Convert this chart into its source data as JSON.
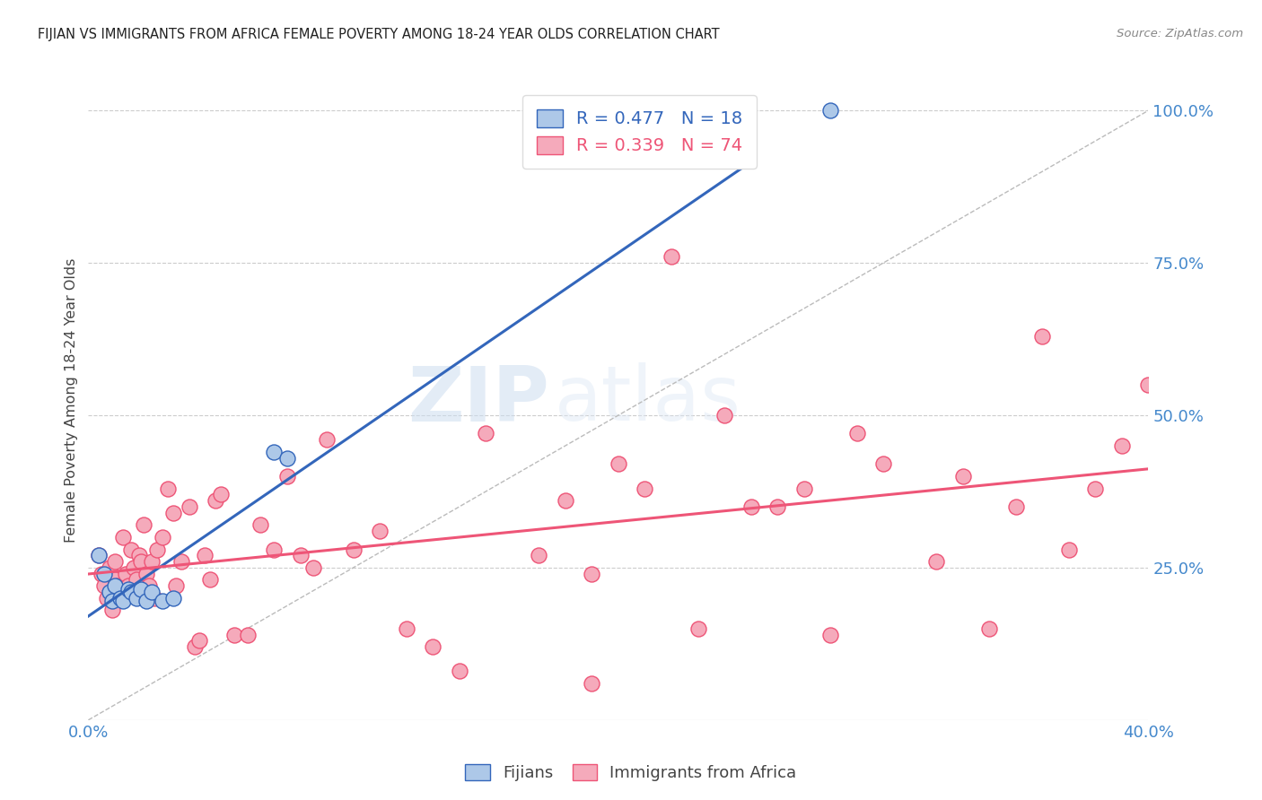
{
  "title": "FIJIAN VS IMMIGRANTS FROM AFRICA FEMALE POVERTY AMONG 18-24 YEAR OLDS CORRELATION CHART",
  "source": "Source: ZipAtlas.com",
  "ylabel": "Female Poverty Among 18-24 Year Olds",
  "xlim": [
    0.0,
    0.4
  ],
  "ylim": [
    0.0,
    1.05
  ],
  "yticks": [
    0.0,
    0.25,
    0.5,
    0.75,
    1.0
  ],
  "ytick_labels": [
    "",
    "25.0%",
    "50.0%",
    "75.0%",
    "100.0%"
  ],
  "xticks": [
    0.0,
    0.08,
    0.16,
    0.24,
    0.32,
    0.4
  ],
  "xtick_labels": [
    "0.0%",
    "",
    "",
    "",
    "",
    "40.0%"
  ],
  "fijian_color": "#adc8e8",
  "africa_color": "#f5aabb",
  "fijian_line_color": "#3366bb",
  "africa_line_color": "#ee5577",
  "diagonal_color": "#bbbbbb",
  "R_fijian": 0.477,
  "N_fijian": 18,
  "R_africa": 0.339,
  "N_africa": 74,
  "legend_label_1": "Fijians",
  "legend_label_2": "Immigrants from Africa",
  "watermark_zip": "ZIP",
  "watermark_atlas": "atlas",
  "fijian_x": [
    0.004,
    0.006,
    0.008,
    0.009,
    0.01,
    0.012,
    0.013,
    0.015,
    0.016,
    0.018,
    0.02,
    0.022,
    0.024,
    0.028,
    0.032,
    0.07,
    0.075,
    0.28
  ],
  "fijian_y": [
    0.27,
    0.24,
    0.21,
    0.195,
    0.22,
    0.2,
    0.195,
    0.215,
    0.21,
    0.2,
    0.215,
    0.195,
    0.21,
    0.195,
    0.2,
    0.44,
    0.43,
    1.0
  ],
  "africa_x": [
    0.004,
    0.005,
    0.006,
    0.007,
    0.008,
    0.009,
    0.01,
    0.01,
    0.011,
    0.012,
    0.013,
    0.014,
    0.015,
    0.016,
    0.017,
    0.018,
    0.019,
    0.02,
    0.021,
    0.022,
    0.023,
    0.024,
    0.025,
    0.026,
    0.028,
    0.03,
    0.032,
    0.033,
    0.035,
    0.038,
    0.04,
    0.042,
    0.044,
    0.046,
    0.048,
    0.05,
    0.055,
    0.06,
    0.065,
    0.07,
    0.075,
    0.08,
    0.085,
    0.09,
    0.1,
    0.11,
    0.12,
    0.13,
    0.14,
    0.15,
    0.17,
    0.18,
    0.19,
    0.21,
    0.23,
    0.24,
    0.25,
    0.27,
    0.29,
    0.3,
    0.32,
    0.35,
    0.37,
    0.38,
    0.39,
    0.2,
    0.22,
    0.26,
    0.28,
    0.33,
    0.34,
    0.36,
    0.4,
    0.19
  ],
  "africa_y": [
    0.27,
    0.24,
    0.22,
    0.2,
    0.25,
    0.18,
    0.26,
    0.23,
    0.22,
    0.21,
    0.3,
    0.24,
    0.22,
    0.28,
    0.25,
    0.23,
    0.27,
    0.26,
    0.32,
    0.24,
    0.22,
    0.26,
    0.2,
    0.28,
    0.3,
    0.38,
    0.34,
    0.22,
    0.26,
    0.35,
    0.12,
    0.13,
    0.27,
    0.23,
    0.36,
    0.37,
    0.14,
    0.14,
    0.32,
    0.28,
    0.4,
    0.27,
    0.25,
    0.46,
    0.28,
    0.31,
    0.15,
    0.12,
    0.08,
    0.47,
    0.27,
    0.36,
    0.24,
    0.38,
    0.15,
    0.5,
    0.35,
    0.38,
    0.47,
    0.42,
    0.26,
    0.35,
    0.28,
    0.38,
    0.45,
    0.42,
    0.76,
    0.35,
    0.14,
    0.4,
    0.15,
    0.63,
    0.55,
    0.06
  ]
}
